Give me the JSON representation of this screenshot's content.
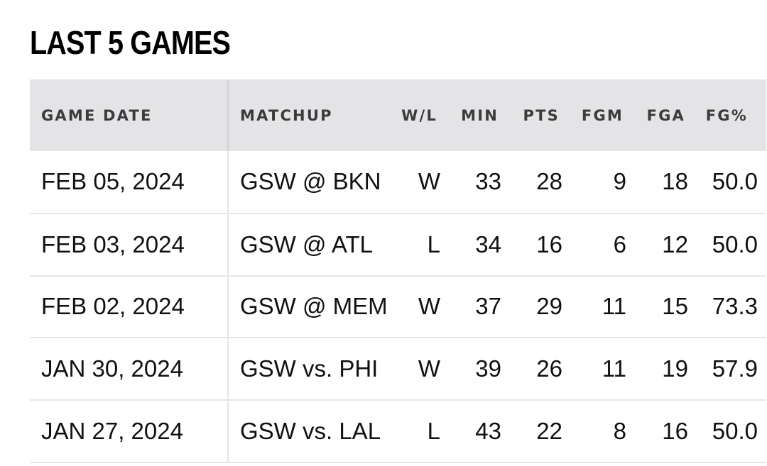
{
  "title": "LAST 5 GAMES",
  "colors": {
    "header_bg": "#e4e4e6",
    "link": "#2f6fcb",
    "text": "#111111"
  },
  "table": {
    "columns": [
      "GAME DATE",
      "MATCHUP",
      "W/L",
      "MIN",
      "PTS",
      "FGM",
      "FGA",
      "FG%"
    ],
    "rows": [
      {
        "date": "FEB 05, 2024",
        "matchup": "GSW @ BKN",
        "wl": "W",
        "min": "33",
        "pts": "28",
        "fgm": "9",
        "fga": "18",
        "fgp": "50.0"
      },
      {
        "date": "FEB 03, 2024",
        "matchup": "GSW @ ATL",
        "wl": "L",
        "min": "34",
        "pts": "16",
        "fgm": "6",
        "fga": "12",
        "fgp": "50.0"
      },
      {
        "date": "FEB 02, 2024",
        "matchup": "GSW @ MEM",
        "wl": "W",
        "min": "37",
        "pts": "29",
        "fgm": "11",
        "fga": "15",
        "fgp": "73.3"
      },
      {
        "date": "JAN 30, 2024",
        "matchup": "GSW vs. PHI",
        "wl": "W",
        "min": "39",
        "pts": "26",
        "fgm": "11",
        "fga": "19",
        "fgp": "57.9"
      },
      {
        "date": "JAN 27, 2024",
        "matchup": "GSW vs. LAL",
        "wl": "L",
        "min": "43",
        "pts": "22",
        "fgm": "8",
        "fga": "16",
        "fgp": "50.0"
      }
    ]
  }
}
